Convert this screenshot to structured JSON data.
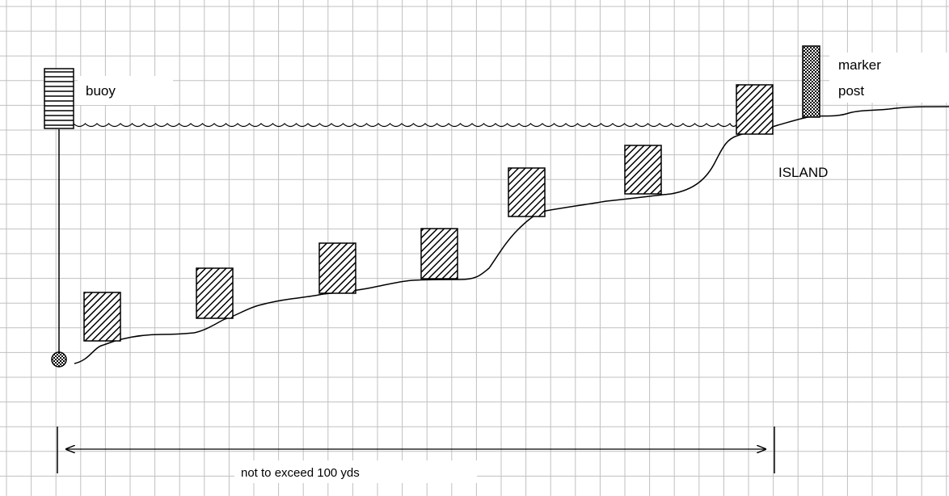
{
  "labels": {
    "buoy": "buoy",
    "marker_line1": "marker",
    "marker_line2": "post",
    "island": "ISLAND",
    "distance": "not to exceed 100 yds"
  },
  "colors": {
    "grid": "#c0c0c0",
    "ink": "#000000",
    "background": "#ffffff"
  },
  "icons": {
    "buoy": "striped-buoy-icon",
    "anchor": "anchor-weight-icon",
    "marker_post": "checkered-post-icon",
    "block": "hatched-block-icon"
  }
}
